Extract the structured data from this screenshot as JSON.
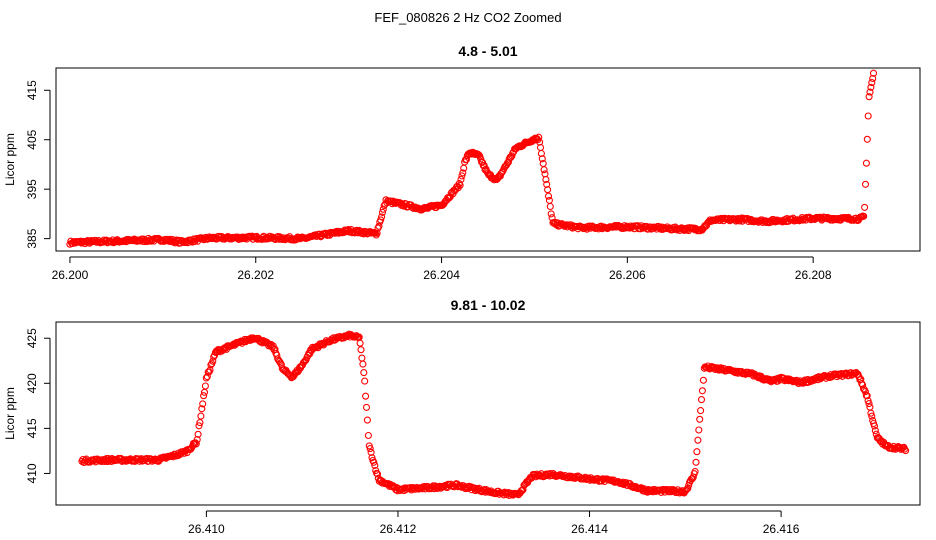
{
  "figure_title": "FEF_080826  2 Hz CO2 Zoomed",
  "colors": {
    "points": "#ff0000",
    "axes": "#000000",
    "background": "#ffffff"
  },
  "chart_data": [
    {
      "type": "scatter",
      "title": "4.8 - 5.01",
      "xlabel": "",
      "ylabel": "Licor ppm",
      "xlim": [
        26.19985,
        26.20915
      ],
      "ylim": [
        382.5,
        419.5
      ],
      "xticks": [
        26.2,
        26.202,
        26.204,
        26.206,
        26.208
      ],
      "xtick_labels": [
        "26.200",
        "26.202",
        "26.204",
        "26.206",
        "26.208"
      ],
      "yticks": [
        385,
        395,
        405,
        415
      ],
      "ytick_labels": [
        "385",
        "395",
        "405",
        "415"
      ],
      "marker": "open-circle",
      "grid": false,
      "legend": "none",
      "keypoints": [
        [
          26.2,
          384.2
        ],
        [
          26.2005,
          384.5
        ],
        [
          26.201,
          384.8
        ],
        [
          26.2012,
          384.3
        ],
        [
          26.2015,
          385.1
        ],
        [
          26.202,
          385.2
        ],
        [
          26.2025,
          385.0
        ],
        [
          26.203,
          386.6
        ],
        [
          26.2033,
          386.0
        ],
        [
          26.2034,
          392.6
        ],
        [
          26.2036,
          391.8
        ],
        [
          26.2038,
          391.0
        ],
        [
          26.204,
          391.8
        ],
        [
          26.2042,
          396.0
        ],
        [
          26.20425,
          400.5
        ],
        [
          26.2043,
          402.4
        ],
        [
          26.2044,
          401.8
        ],
        [
          26.2045,
          398.0
        ],
        [
          26.2046,
          396.8
        ],
        [
          26.2047,
          400.0
        ],
        [
          26.2048,
          403.3
        ],
        [
          26.205,
          405.2
        ],
        [
          26.20505,
          405.3
        ],
        [
          26.2052,
          388.0
        ],
        [
          26.2055,
          387.2
        ],
        [
          26.206,
          387.4
        ],
        [
          26.2065,
          387.0
        ],
        [
          26.2068,
          386.9
        ],
        [
          26.2069,
          388.7
        ],
        [
          26.2072,
          388.9
        ],
        [
          26.2075,
          388.5
        ],
        [
          26.208,
          389.1
        ],
        [
          26.2085,
          389.0
        ],
        [
          26.20855,
          389.4
        ],
        [
          26.2086,
          413.5
        ],
        [
          26.20865,
          418.3
        ]
      ]
    },
    {
      "type": "scatter",
      "title": "9.81 - 10.02",
      "xlabel": "",
      "ylabel": "Licor ppm",
      "xlim": [
        26.40843,
        26.41745
      ],
      "ylim": [
        406.5,
        426.8
      ],
      "xticks": [
        26.41,
        26.412,
        26.414,
        26.416
      ],
      "xtick_labels": [
        "26.410",
        "26.412",
        "26.414",
        "26.416"
      ],
      "yticks": [
        410,
        415,
        420,
        425
      ],
      "ytick_labels": [
        "410",
        "415",
        "420",
        "425"
      ],
      "marker": "open-circle",
      "grid": false,
      "legend": "none",
      "keypoints": [
        [
          26.4087,
          411.4
        ],
        [
          26.409,
          411.5
        ],
        [
          26.4095,
          411.5
        ],
        [
          26.4097,
          412.1
        ],
        [
          26.4098,
          412.5
        ],
        [
          26.4099,
          413.5
        ],
        [
          26.41,
          420.5
        ],
        [
          26.4101,
          423.5
        ],
        [
          26.4103,
          424.3
        ],
        [
          26.4105,
          425.1
        ],
        [
          26.4107,
          424.0
        ],
        [
          26.4108,
          421.5
        ],
        [
          26.4109,
          420.7
        ],
        [
          26.411,
          422.0
        ],
        [
          26.4111,
          423.8
        ],
        [
          26.4113,
          424.8
        ],
        [
          26.4115,
          425.3
        ],
        [
          26.4116,
          425.0
        ],
        [
          26.41165,
          420.5
        ],
        [
          26.4117,
          413.0
        ],
        [
          26.4118,
          409.3
        ],
        [
          26.412,
          408.2
        ],
        [
          26.4123,
          408.4
        ],
        [
          26.4126,
          408.7
        ],
        [
          26.413,
          407.9
        ],
        [
          26.41325,
          407.6
        ],
        [
          26.4134,
          409.7
        ],
        [
          26.4136,
          409.9
        ],
        [
          26.414,
          409.4
        ],
        [
          26.4143,
          409.1
        ],
        [
          26.4146,
          408.1
        ],
        [
          26.415,
          408.0
        ],
        [
          26.4151,
          410.0
        ],
        [
          26.4152,
          421.8
        ],
        [
          26.4154,
          421.5
        ],
        [
          26.4157,
          421.0
        ],
        [
          26.4159,
          420.2
        ],
        [
          26.416,
          420.5
        ],
        [
          26.4162,
          420.1
        ],
        [
          26.4165,
          420.8
        ],
        [
          26.4168,
          421.1
        ],
        [
          26.4169,
          418.5
        ],
        [
          26.417,
          414.0
        ],
        [
          26.4171,
          413.0
        ],
        [
          26.4173,
          412.7
        ]
      ]
    }
  ]
}
